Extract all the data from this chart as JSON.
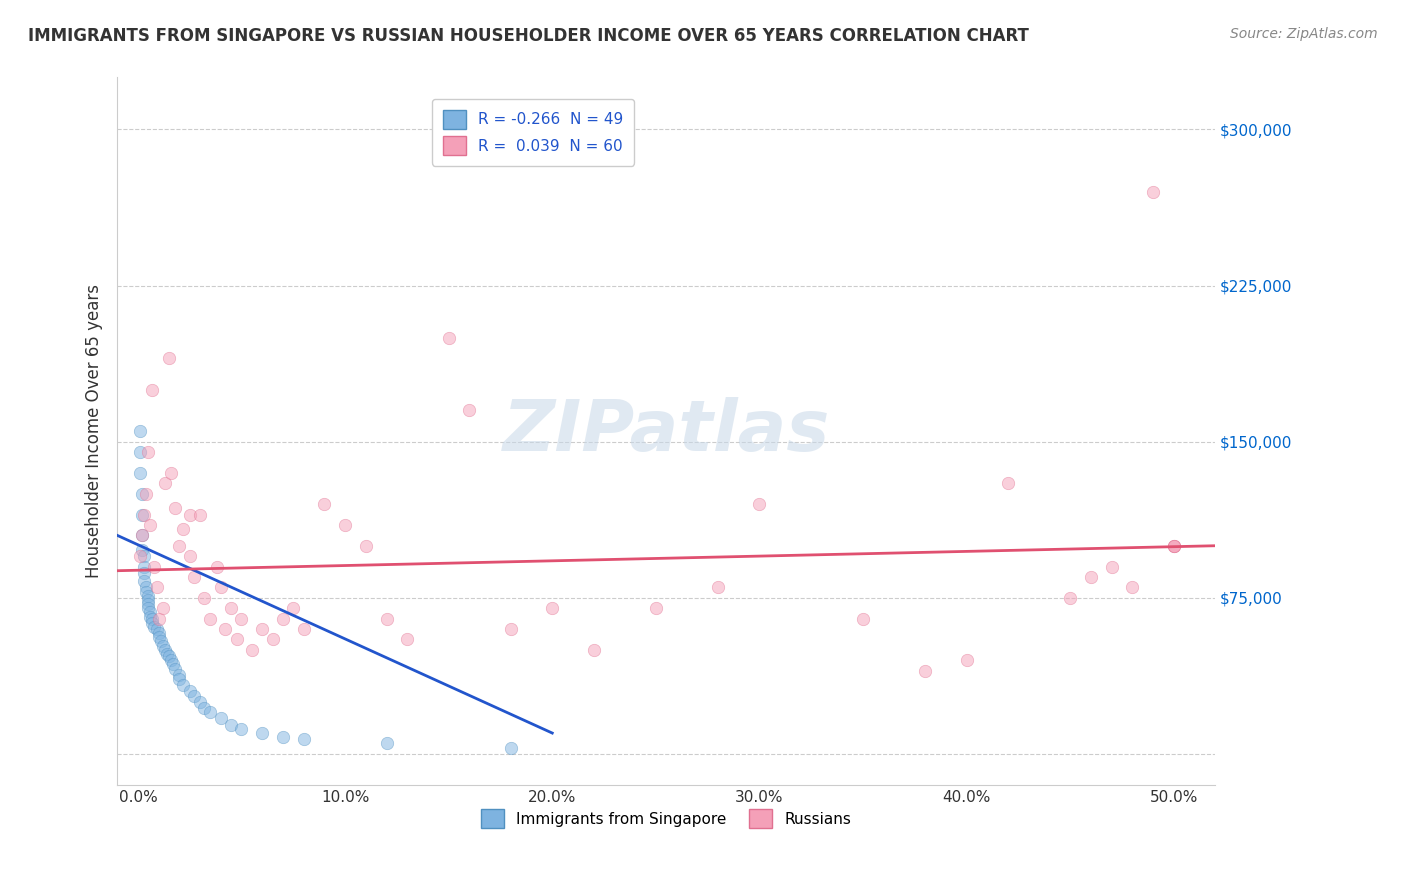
{
  "title": "IMMIGRANTS FROM SINGAPORE VS RUSSIAN HOUSEHOLDER INCOME OVER 65 YEARS CORRELATION CHART",
  "source": "Source: ZipAtlas.com",
  "ylabel": "Householder Income Over 65 years",
  "watermark": "ZIPatlas",
  "legend": [
    {
      "label": "R = -0.266  N = 49",
      "color": "#aec6e8",
      "text_color": "#2255cc"
    },
    {
      "label": "R =  0.039  N = 60",
      "color": "#f4b8c8",
      "text_color": "#2255cc"
    }
  ],
  "x_ticks": [
    0.0,
    0.1,
    0.2,
    0.3,
    0.4,
    0.5
  ],
  "x_tick_labels": [
    "0.0%",
    "10.0%",
    "20.0%",
    "30.0%",
    "40.0%",
    "50.0%"
  ],
  "y_ticks": [
    0,
    75000,
    150000,
    225000,
    300000
  ],
  "y_tick_labels": [
    "",
    "$75,000",
    "$150,000",
    "$225,000",
    "$300,000"
  ],
  "xlim": [
    -0.01,
    0.52
  ],
  "ylim": [
    -15000,
    325000
  ],
  "background_color": "#ffffff",
  "grid_color": "#cccccc",
  "blue_scatter_x": [
    0.001,
    0.001,
    0.001,
    0.002,
    0.002,
    0.002,
    0.002,
    0.003,
    0.003,
    0.003,
    0.003,
    0.004,
    0.004,
    0.005,
    0.005,
    0.005,
    0.005,
    0.006,
    0.006,
    0.007,
    0.007,
    0.008,
    0.009,
    0.01,
    0.01,
    0.011,
    0.012,
    0.013,
    0.014,
    0.015,
    0.016,
    0.017,
    0.018,
    0.02,
    0.02,
    0.022,
    0.025,
    0.027,
    0.03,
    0.032,
    0.035,
    0.04,
    0.045,
    0.05,
    0.06,
    0.07,
    0.08,
    0.12,
    0.18
  ],
  "blue_scatter_y": [
    155000,
    145000,
    135000,
    125000,
    115000,
    105000,
    98000,
    95000,
    90000,
    87000,
    83000,
    80000,
    78000,
    76000,
    74000,
    72000,
    70000,
    68000,
    66000,
    65000,
    63000,
    61000,
    60000,
    58000,
    56000,
    54000,
    52000,
    50000,
    48000,
    47000,
    45000,
    43000,
    41000,
    38000,
    36000,
    33000,
    30000,
    28000,
    25000,
    22000,
    20000,
    17000,
    14000,
    12000,
    10000,
    8000,
    7000,
    5000,
    3000
  ],
  "pink_scatter_x": [
    0.001,
    0.002,
    0.003,
    0.004,
    0.005,
    0.006,
    0.007,
    0.008,
    0.009,
    0.01,
    0.012,
    0.013,
    0.015,
    0.016,
    0.018,
    0.02,
    0.022,
    0.025,
    0.025,
    0.027,
    0.03,
    0.032,
    0.035,
    0.038,
    0.04,
    0.042,
    0.045,
    0.048,
    0.05,
    0.055,
    0.06,
    0.065,
    0.07,
    0.075,
    0.08,
    0.09,
    0.1,
    0.11,
    0.12,
    0.13,
    0.15,
    0.16,
    0.18,
    0.2,
    0.22,
    0.25,
    0.28,
    0.3,
    0.35,
    0.38,
    0.4,
    0.42,
    0.45,
    0.46,
    0.47,
    0.48,
    0.49,
    0.5,
    0.5,
    0.5
  ],
  "pink_scatter_y": [
    95000,
    105000,
    115000,
    125000,
    145000,
    110000,
    175000,
    90000,
    80000,
    65000,
    70000,
    130000,
    190000,
    135000,
    118000,
    100000,
    108000,
    115000,
    95000,
    85000,
    115000,
    75000,
    65000,
    90000,
    80000,
    60000,
    70000,
    55000,
    65000,
    50000,
    60000,
    55000,
    65000,
    70000,
    60000,
    120000,
    110000,
    100000,
    65000,
    55000,
    200000,
    165000,
    60000,
    70000,
    50000,
    70000,
    80000,
    120000,
    65000,
    40000,
    45000,
    130000,
    75000,
    85000,
    90000,
    80000,
    270000,
    100000,
    100000,
    100000
  ],
  "blue_line_x": [
    -0.01,
    0.2
  ],
  "blue_line_y": [
    105000,
    10000
  ],
  "pink_line_x": [
    -0.01,
    0.52
  ],
  "pink_line_y": [
    88000,
    100000
  ],
  "scatter_size": 80,
  "scatter_alpha": 0.5,
  "blue_scatter_color": "#7eb3e0",
  "blue_scatter_edge": "#5090c0",
  "pink_scatter_color": "#f4a0b8",
  "pink_scatter_edge": "#e07090",
  "blue_line_color": "#2255cc",
  "pink_line_color": "#e05070",
  "title_color": "#333333",
  "ylabel_color": "#333333",
  "tick_label_color_y": "#0066cc",
  "tick_label_color_x": "#333333"
}
